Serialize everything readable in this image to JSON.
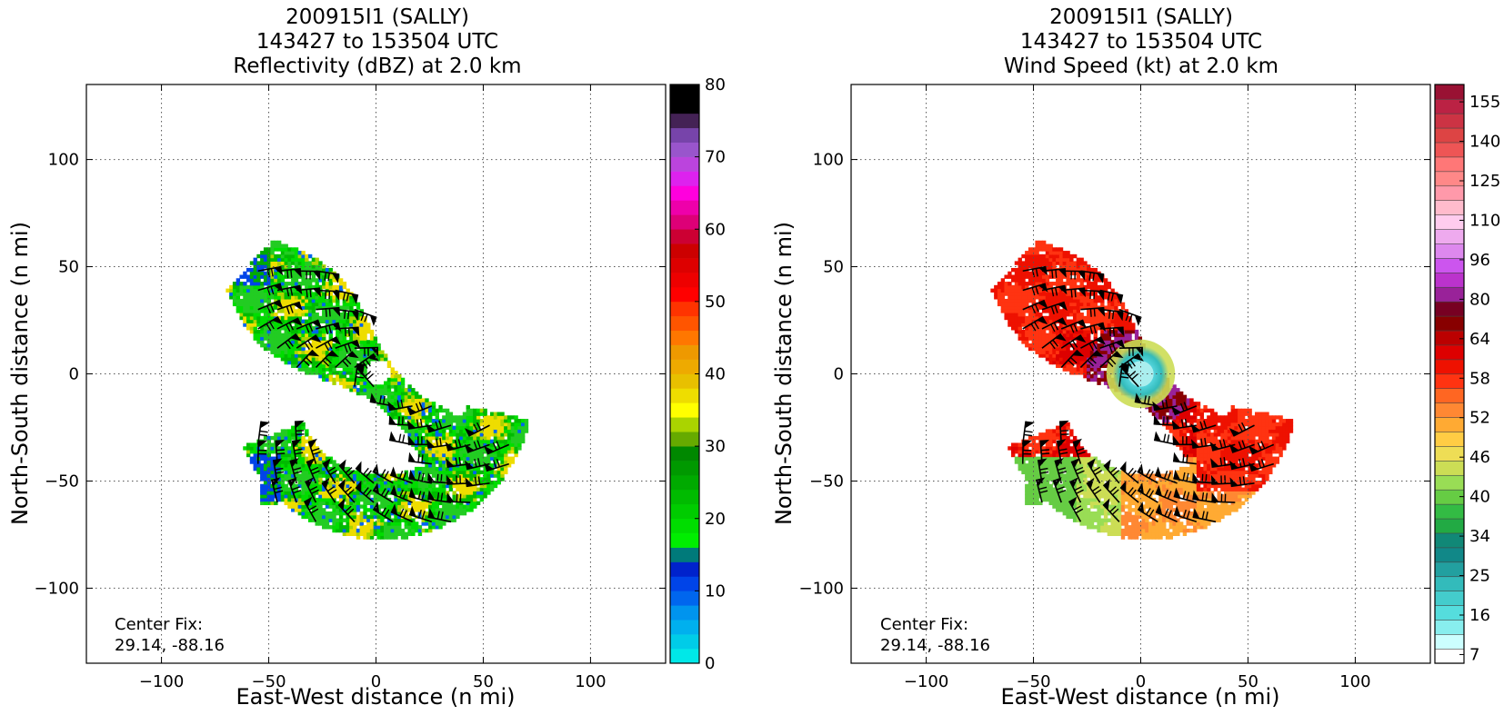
{
  "chart_data": [
    {
      "type": "heatmap",
      "title_lines": [
        "200915I1 (SALLY)",
        "143427 to 153504 UTC",
        "Reflectivity (dBZ) at 2.0 km"
      ],
      "xlabel": "East-West distance (n mi)",
      "ylabel": "North-South distance (n mi)",
      "xlim": [
        -135,
        135
      ],
      "ylim": [
        -135,
        135
      ],
      "xticks": [
        -100,
        -50,
        0,
        50,
        100
      ],
      "yticks": [
        -100,
        -50,
        0,
        50,
        100
      ],
      "grid": true,
      "annotation": [
        "Center Fix:",
        "29.14, -88.16"
      ],
      "colorbar": {
        "min": 0,
        "max": 80,
        "tick_labels": [
          "0",
          "10",
          "20",
          "30",
          "40",
          "50",
          "60",
          "70",
          "80"
        ],
        "tick_values": [
          0,
          10,
          20,
          30,
          40,
          50,
          60,
          70,
          80
        ],
        "colors": [
          "#00e8e8",
          "#00cce8",
          "#00b0ee",
          "#0094ee",
          "#0066ee",
          "#0044e8",
          "#0022cc",
          "#007a7a",
          "#00ee00",
          "#00dd00",
          "#00cc00",
          "#00bb00",
          "#00aa00",
          "#009900",
          "#008800",
          "#66aa00",
          "#aad400",
          "#ffff00",
          "#eedd00",
          "#e8c000",
          "#eeaa00",
          "#ee9900",
          "#ff7700",
          "#ff5500",
          "#ff3300",
          "#ff0000",
          "#ee0000",
          "#dd0000",
          "#cc0000",
          "#cc0033",
          "#dd0077",
          "#ee00aa",
          "#ff00dd",
          "#dd22ee",
          "#bb44dd",
          "#9955cc",
          "#7744aa",
          "#442255",
          "#000000",
          "#000000"
        ]
      }
    },
    {
      "type": "heatmap",
      "title_lines": [
        "200915I1 (SALLY)",
        "143427 to 153504 UTC",
        "Wind Speed (kt) at 2.0 km"
      ],
      "xlabel": "East-West distance (n mi)",
      "ylabel": "North-South distance (n mi)",
      "xlim": [
        -135,
        135
      ],
      "ylim": [
        -135,
        135
      ],
      "xticks": [
        -100,
        -50,
        0,
        50,
        100
      ],
      "yticks": [
        -100,
        -50,
        0,
        50,
        100
      ],
      "grid": true,
      "annotation": [
        "Center Fix:",
        "29.14, -88.16"
      ],
      "colorbar": {
        "tick_labels": [
          "7",
          "16",
          "25",
          "34",
          "40",
          "46",
          "52",
          "58",
          "64",
          "80",
          "96",
          "110",
          "125",
          "140",
          "155"
        ],
        "colors": [
          "#ffffff",
          "#ccffff",
          "#88eeee",
          "#55dddd",
          "#44cccc",
          "#33bbbb",
          "#22a0a0",
          "#118888",
          "#118877",
          "#22aa44",
          "#33bb44",
          "#66cc44",
          "#99dd55",
          "#ccdd55",
          "#eedd55",
          "#ffcc44",
          "#ffaa33",
          "#ff8833",
          "#ff6622",
          "#ff3311",
          "#ee1100",
          "#dd0000",
          "#bb0000",
          "#880000",
          "#770022",
          "#992299",
          "#bb33cc",
          "#cc55ee",
          "#dd88ee",
          "#eeaaee",
          "#ffccee",
          "#ffbbcc",
          "#ff99aa",
          "#ff8888",
          "#ff7777",
          "#ee5555",
          "#dd4444",
          "#cc3344",
          "#bb2244",
          "#991133"
        ]
      }
    }
  ]
}
